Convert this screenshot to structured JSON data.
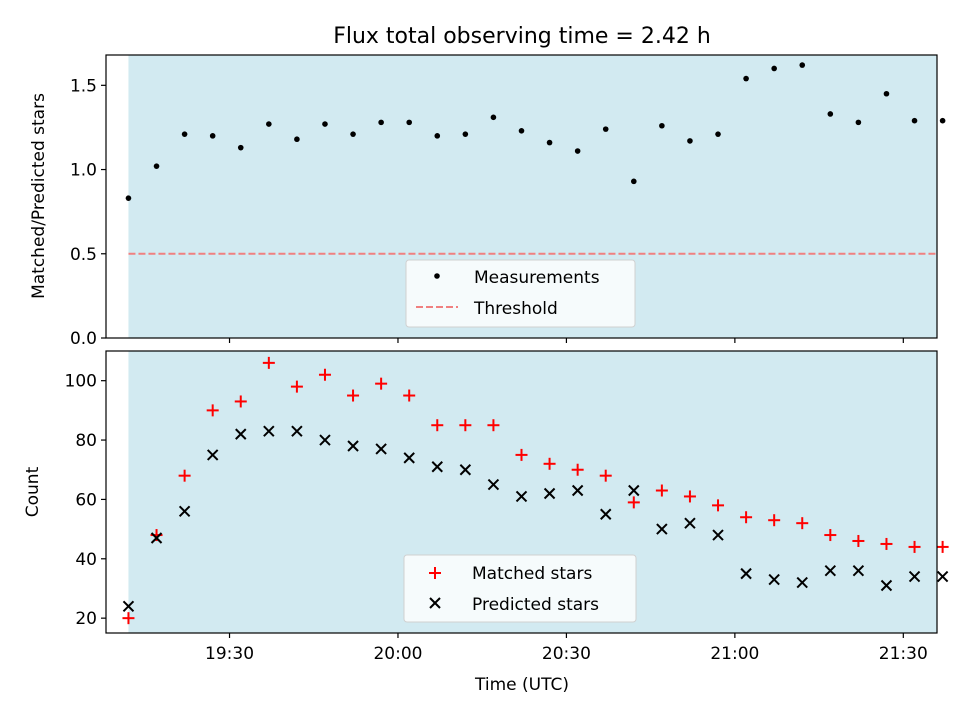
{
  "figure": {
    "title": "Flux total observing time = 2.42 h"
  },
  "chart_data": [
    {
      "type": "scatter",
      "ylabel": "Matched/Predicted stars",
      "ylim": [
        0,
        1.68
      ],
      "yticks": [
        0.0,
        0.5,
        1.0,
        1.5
      ],
      "ytick_labels": [
        "0.0",
        "0.5",
        "1.0",
        "1.5"
      ],
      "xlim": [
        "19:08",
        "21:36"
      ],
      "shaded_span": [
        "19:12",
        "21:36"
      ],
      "shade_color": "#add8e6",
      "legend_position": "lower center",
      "x": [
        "19:12",
        "19:17",
        "19:22",
        "19:27",
        "19:32",
        "19:37",
        "19:42",
        "19:47",
        "19:52",
        "19:57",
        "20:02",
        "20:07",
        "20:12",
        "20:17",
        "20:22",
        "20:27",
        "20:32",
        "20:37",
        "20:42",
        "20:47",
        "20:52",
        "20:57",
        "21:02",
        "21:07",
        "21:12",
        "21:17",
        "21:22",
        "21:27",
        "21:32",
        "21:37"
      ],
      "series": [
        {
          "name": "Measurements",
          "marker": "dot",
          "color": "#000000",
          "values": [
            0.83,
            1.02,
            1.21,
            1.2,
            1.13,
            1.27,
            1.18,
            1.27,
            1.21,
            1.28,
            1.28,
            1.2,
            1.21,
            1.31,
            1.23,
            1.16,
            1.11,
            1.24,
            0.93,
            1.26,
            1.17,
            1.21,
            1.54,
            1.6,
            1.62,
            1.33,
            1.28,
            1.45,
            1.29,
            1.29
          ]
        },
        {
          "name": "Threshold",
          "type": "hline",
          "style": "dashed",
          "color": "#f08080",
          "value": 0.5
        }
      ]
    },
    {
      "type": "scatter",
      "xlabel": "Time (UTC)",
      "ylabel": "Count",
      "ylim": [
        15,
        110
      ],
      "yticks": [
        20,
        40,
        60,
        80,
        100
      ],
      "ytick_labels": [
        "20",
        "40",
        "60",
        "80",
        "100"
      ],
      "xticks": [
        "19:30",
        "20:00",
        "20:30",
        "21:00",
        "21:30"
      ],
      "xtick_labels": [
        "19:30",
        "20:00",
        "20:30",
        "21:00",
        "21:30"
      ],
      "xlim": [
        "19:08",
        "21:36"
      ],
      "shaded_span": [
        "19:12",
        "21:36"
      ],
      "shade_color": "#add8e6",
      "legend_position": "lower center",
      "x": [
        "19:12",
        "19:17",
        "19:22",
        "19:27",
        "19:32",
        "19:37",
        "19:42",
        "19:47",
        "19:52",
        "19:57",
        "20:02",
        "20:07",
        "20:12",
        "20:17",
        "20:22",
        "20:27",
        "20:32",
        "20:37",
        "20:42",
        "20:47",
        "20:52",
        "20:57",
        "21:02",
        "21:07",
        "21:12",
        "21:17",
        "21:22",
        "21:27",
        "21:32",
        "21:37"
      ],
      "series": [
        {
          "name": "Matched stars",
          "marker": "plus",
          "color": "#ff0000",
          "values": [
            20,
            48,
            68,
            90,
            93,
            106,
            98,
            102,
            95,
            99,
            95,
            85,
            85,
            85,
            75,
            72,
            70,
            68,
            59,
            63,
            61,
            58,
            54,
            53,
            52,
            48,
            46,
            45,
            44,
            44
          ]
        },
        {
          "name": "Predicted stars",
          "marker": "x",
          "color": "#000000",
          "values": [
            24,
            47,
            56,
            75,
            82,
            83,
            83,
            80,
            78,
            77,
            74,
            71,
            70,
            65,
            61,
            62,
            63,
            55,
            63,
            50,
            52,
            48,
            35,
            33,
            32,
            36,
            36,
            31,
            34,
            34
          ]
        }
      ]
    }
  ]
}
